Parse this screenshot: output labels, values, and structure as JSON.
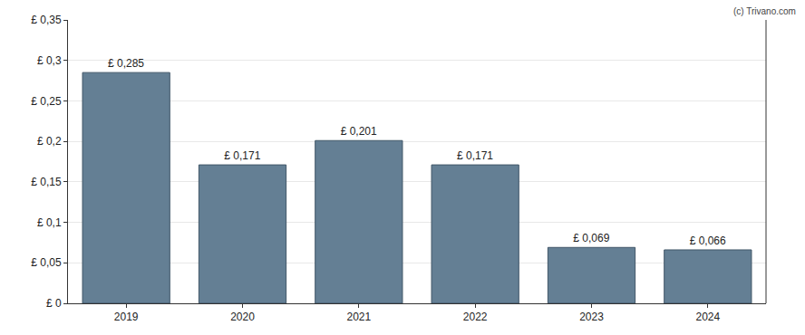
{
  "chart_data": {
    "type": "bar",
    "categories": [
      "2019",
      "2020",
      "2021",
      "2022",
      "2023",
      "2024"
    ],
    "values": [
      0.285,
      0.171,
      0.201,
      0.171,
      0.069,
      0.066
    ],
    "value_labels": [
      "£ 0,285",
      "£ 0,171",
      "£ 0,201",
      "£ 0,171",
      "£ 0,069",
      "£ 0,066"
    ],
    "data_labels": true,
    "color": "#647f94",
    "ylim": [
      0,
      0.35
    ],
    "yticks": [
      {
        "value": 0,
        "label": "£ 0"
      },
      {
        "value": 0.05,
        "label": "£ 0,05"
      },
      {
        "value": 0.1,
        "label": "£ 0,1"
      },
      {
        "value": 0.15,
        "label": "£ 0,15"
      },
      {
        "value": 0.2,
        "label": "£ 0,2"
      },
      {
        "value": 0.25,
        "label": "£ 0,25"
      },
      {
        "value": 0.3,
        "label": "£ 0,3"
      },
      {
        "value": 0.35,
        "label": "£ 0,35"
      }
    ],
    "grid": true,
    "annotations": [
      "(c) Trivano.com"
    ]
  }
}
